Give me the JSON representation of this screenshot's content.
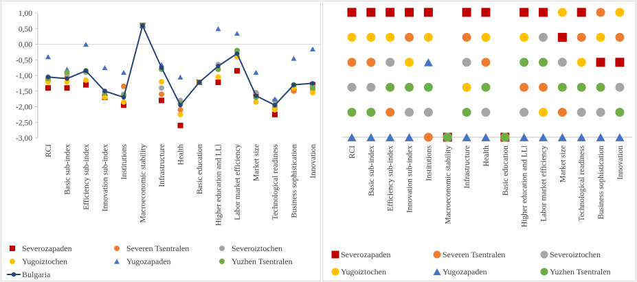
{
  "colors": {
    "Severozapaden": "#c00000",
    "Severen Tsentralen": "#ed7d31",
    "Severoiztochen": "#a5a5a5",
    "Yugoiztochen": "#ffc000",
    "Yugozapaden": "#4472c4",
    "Yuzhen Tsentralen": "#70ad47",
    "Bulgaria": "#264478"
  },
  "chart_data": [
    {
      "type": "line",
      "categories": [
        "RCI",
        "Basic sub-index",
        "Efficiency sub-index",
        "Innovation sub-index",
        "Institutions",
        "Macroeconomic stability",
        "Infrastructure",
        "Health",
        "Basic education",
        "Higher education and LLl",
        "Labor market efficiency",
        "Market size",
        "Technological readiness",
        "Business sophistication",
        "Innovation"
      ],
      "ylim": [
        -3,
        1
      ],
      "yticks": [
        "1,00",
        "0,50",
        "0,00",
        "-0,50",
        "-1,00",
        "-1,50",
        "-2,00",
        "-2,50",
        "-3,00"
      ],
      "grid": false,
      "legend_position": "bottom",
      "series": [
        {
          "name": "Severozapaden",
          "marker": "square",
          "values": [
            -1.4,
            -1.4,
            -1.3,
            -1.7,
            -1.95,
            0.6,
            -1.8,
            -2.6,
            -1.22,
            -1.22,
            -0.85,
            -1.6,
            -2.25,
            -1.45,
            -1.3
          ]
        },
        {
          "name": "Severen Tsentralen",
          "marker": "circle",
          "values": [
            -1.15,
            -1.05,
            -0.9,
            -1.7,
            -1.35,
            0.6,
            -1.6,
            -2.1,
            -1.22,
            -0.8,
            -0.4,
            -1.7,
            -2.05,
            -1.5,
            -1.45
          ]
        },
        {
          "name": "Severoiztochen",
          "marker": "circle",
          "values": [
            -1.05,
            -0.95,
            -0.9,
            -1.5,
            -1.6,
            0.6,
            -1.4,
            -1.8,
            -1.22,
            -0.65,
            -0.3,
            -1.55,
            -1.8,
            -1.3,
            -1.35
          ]
        },
        {
          "name": "Yugoiztochen",
          "marker": "circle",
          "values": [
            -1.2,
            -1.2,
            -1.15,
            -1.7,
            -1.85,
            0.6,
            -1.2,
            -2.25,
            -1.22,
            -1.05,
            -0.4,
            -1.85,
            -2.1,
            -1.4,
            -1.55
          ]
        },
        {
          "name": "Yugozapaden",
          "marker": "triangle",
          "values": [
            -0.4,
            -0.8,
            0.0,
            -0.75,
            -0.9,
            0.6,
            -0.65,
            -1.05,
            -1.22,
            0.5,
            0.35,
            -0.9,
            -1.75,
            -0.45,
            -0.15
          ]
        },
        {
          "name": "Yuzhen Tsentralen",
          "marker": "circle",
          "values": [
            -1.1,
            -0.9,
            -0.85,
            -1.55,
            -1.65,
            0.6,
            -0.8,
            -1.9,
            -1.22,
            -0.8,
            -0.2,
            -1.7,
            -1.95,
            -1.3,
            -1.4
          ]
        },
        {
          "name": "Bulgaria",
          "marker": "line-dot",
          "values": [
            -1.05,
            -1.1,
            -0.85,
            -1.5,
            -1.7,
            0.6,
            -0.75,
            -1.95,
            -1.22,
            -0.7,
            -0.3,
            -1.65,
            -1.95,
            -1.3,
            -1.25
          ]
        }
      ]
    },
    {
      "type": "scatter",
      "description_rank": "rank 1 (top row) to 6 (bottom row) per category",
      "categories": [
        "RCI",
        "Basic sub-index",
        "Efficiency sub-index",
        "Innovation sub-index",
        "Institutions",
        "Macroeconomic stability",
        "Infrastructure",
        "Health",
        "Basic education",
        "Higher education and LLl",
        "Labor market efficiency",
        "Market size",
        "Technological readiness",
        "Business sophistication",
        "Innovation"
      ],
      "legend_position": "bottom",
      "series": [
        {
          "name": "Severozapaden",
          "marker": "square",
          "values": [
            1,
            1,
            1,
            1,
            1,
            6,
            1,
            1,
            6,
            1,
            1,
            2,
            1,
            3,
            3
          ]
        },
        {
          "name": "Severen Tsentralen",
          "marker": "circle",
          "values": [
            3,
            3,
            5,
            2,
            6,
            6,
            2,
            3,
            6,
            4,
            4,
            5,
            2,
            1,
            2
          ]
        },
        {
          "name": "Severoiztochen",
          "marker": "circle",
          "values": [
            4,
            4,
            3,
            5,
            5,
            6,
            3,
            5,
            6,
            5,
            2,
            3,
            5,
            5,
            4
          ]
        },
        {
          "name": "Yugoiztochen",
          "marker": "circle",
          "values": [
            2,
            2,
            2,
            3,
            2,
            6,
            4,
            2,
            6,
            2,
            5,
            1,
            3,
            2,
            1
          ]
        },
        {
          "name": "Yugozapaden",
          "marker": "triangle",
          "values": [
            6,
            6,
            6,
            6,
            3,
            6,
            6,
            6,
            6,
            6,
            6,
            6,
            6,
            6,
            6
          ]
        },
        {
          "name": "Yuzhen Tsentralen",
          "marker": "circle",
          "values": [
            5,
            5,
            4,
            4,
            4,
            6,
            5,
            4,
            6,
            3,
            3,
            4,
            4,
            4,
            5
          ]
        }
      ]
    }
  ]
}
